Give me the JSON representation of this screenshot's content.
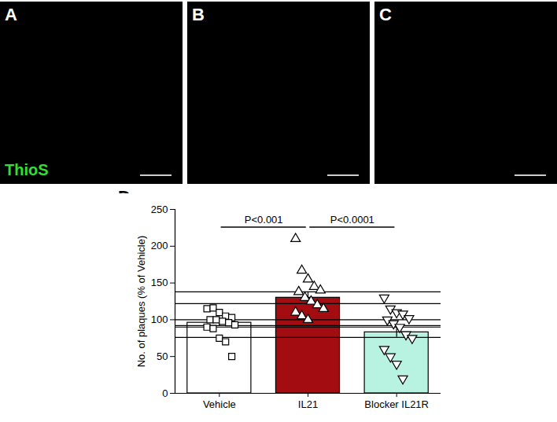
{
  "panels": {
    "labels": [
      "A",
      "B",
      "C"
    ],
    "stain": "ThioS",
    "chart_label": "D"
  },
  "chart_data": {
    "type": "bar",
    "categories": [
      "Vehicle",
      "IL21",
      "Blocker IL21R"
    ],
    "values": [
      96,
      130,
      83
    ],
    "errors": [
      4,
      8,
      7
    ],
    "colors": [
      "#ffffff",
      "#a30d12",
      "#b8f2e0"
    ],
    "ylabel": "No. of plaques (% of Vehicle)",
    "ylim": [
      0,
      250
    ],
    "yticks": [
      0,
      50,
      100,
      150,
      200,
      250
    ],
    "points": [
      {
        "category": "Vehicle",
        "marker": "square",
        "values": [
          115,
          116,
          110,
          105,
          103,
          100,
          100,
          98,
          96,
          93,
          90,
          88,
          75,
          70,
          50
        ]
      },
      {
        "category": "IL21",
        "marker": "triangle",
        "values": [
          210,
          167,
          155,
          145,
          140,
          138,
          130,
          125,
          120,
          115,
          110,
          105,
          100
        ]
      },
      {
        "category": "Blocker IL21R",
        "marker": "triangle-down",
        "values": [
          130,
          115,
          110,
          108,
          102,
          100,
          95,
          90,
          80,
          75,
          60,
          50,
          40,
          20
        ]
      }
    ],
    "annotations": [
      {
        "from": "Vehicle",
        "to": "IL21",
        "y": 226,
        "text": "P<0.001"
      },
      {
        "from": "IL21",
        "to": "Blocker IL21R",
        "y": 226,
        "text": "P<0.0001"
      }
    ]
  }
}
